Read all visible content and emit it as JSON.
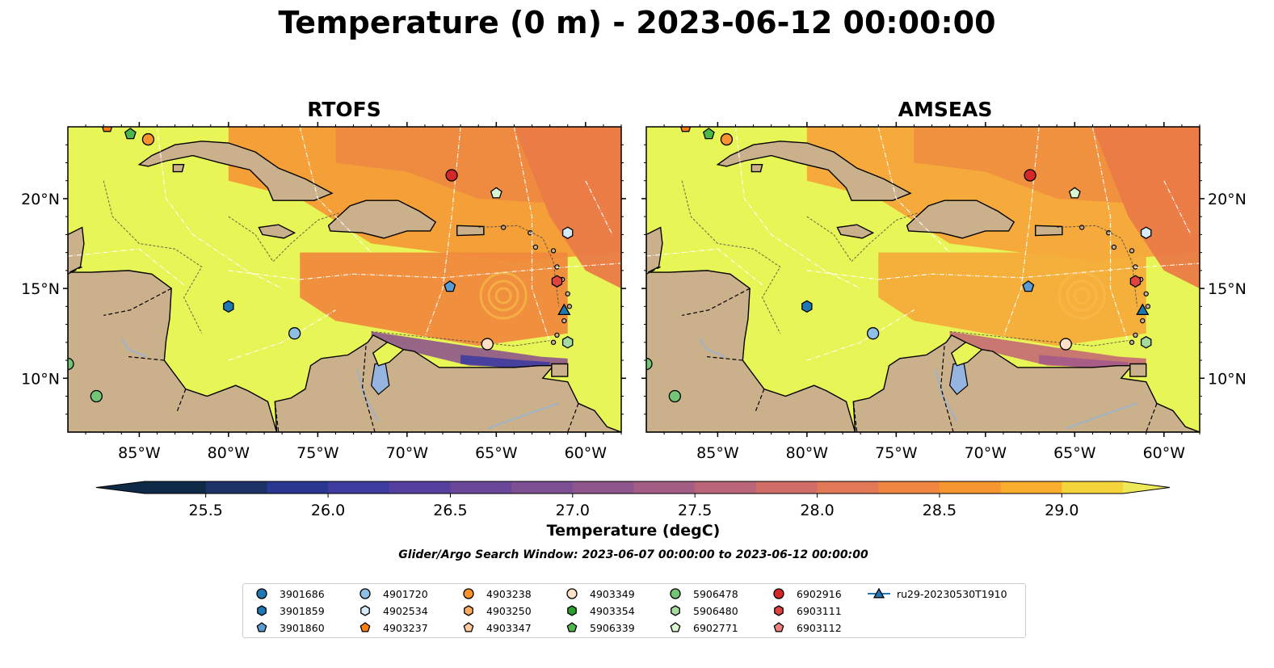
{
  "title": "Temperature (0 m) - 2023-06-12 00:00:00",
  "panels": [
    {
      "title": "RTOFS"
    },
    {
      "title": "AMSEAS"
    }
  ],
  "lon_labels": [
    "85°W",
    "80°W",
    "75°W",
    "70°W",
    "65°W",
    "60°W"
  ],
  "lat_labels": [
    "20°N",
    "15°N",
    "10°N"
  ],
  "map_extent": {
    "lon_min": -89,
    "lon_max": -58,
    "lat_min": 7,
    "lat_max": 24
  },
  "colorbar": {
    "label": "Temperature (degC)",
    "min": 25.25,
    "max": 29.25,
    "step": 0.25,
    "ticks": [
      "25.5",
      "26.0",
      "26.5",
      "27.0",
      "27.5",
      "28.0",
      "28.5",
      "29.0"
    ],
    "colors": [
      "#0e2a46",
      "#1d3266",
      "#2a3790",
      "#3f3ca0",
      "#553f9f",
      "#6a4799",
      "#7c4f93",
      "#8e568c",
      "#a45e86",
      "#bb6678",
      "#d06d66",
      "#e27956",
      "#f0863f",
      "#f6962f",
      "#f8ad2c",
      "#f4d43a"
    ],
    "over_color": "#ede95a"
  },
  "search_window": "Glider/Argo Search Window: 2023-06-07 00:00:00 to 2023-06-12 00:00:00",
  "colors": {
    "land": "#cbb08c",
    "pacific": "#95b4e0",
    "warm_sea": "#e8f556"
  },
  "legend": [
    {
      "label": "3901686",
      "marker": "circle",
      "color": "#1f77b4"
    },
    {
      "label": "3901859",
      "marker": "hexagon",
      "color": "#1f77b4"
    },
    {
      "label": "3901860",
      "marker": "pentagon",
      "color": "#5b9bd5"
    },
    {
      "label": "4901720",
      "marker": "circle",
      "color": "#8ebfe6"
    },
    {
      "label": "4902534",
      "marker": "hexagon",
      "color": "#d6ecfa"
    },
    {
      "label": "4903237",
      "marker": "pentagon",
      "color": "#ff7f0e"
    },
    {
      "label": "4903238",
      "marker": "circle",
      "color": "#f7922d"
    },
    {
      "label": "4903250",
      "marker": "hexagon",
      "color": "#fbae62"
    },
    {
      "label": "4903347",
      "marker": "pentagon",
      "color": "#fdc89a"
    },
    {
      "label": "4903349",
      "marker": "circle",
      "color": "#fde0c5"
    },
    {
      "label": "4903354",
      "marker": "hexagon",
      "color": "#2ca02c"
    },
    {
      "label": "5906339",
      "marker": "pentagon",
      "color": "#4cb84c"
    },
    {
      "label": "5906478",
      "marker": "circle",
      "color": "#74c476"
    },
    {
      "label": "5906480",
      "marker": "hexagon",
      "color": "#a6dba0"
    },
    {
      "label": "6902771",
      "marker": "pentagon",
      "color": "#d9f5cf"
    },
    {
      "label": "6902916",
      "marker": "circle",
      "color": "#d62728"
    },
    {
      "label": "6903111",
      "marker": "hexagon",
      "color": "#e0443f"
    },
    {
      "label": "6903112",
      "marker": "pentagon",
      "color": "#f08080"
    },
    {
      "label": "ru29-20230530T1910",
      "marker": "triangle-line",
      "color": "#1f77b4"
    }
  ],
  "observations": [
    {
      "label": "4903237",
      "lon": -86.8,
      "lat": 24.0
    },
    {
      "label": "5906339",
      "lon": -85.5,
      "lat": 23.6
    },
    {
      "label": "4903238",
      "lon": -84.5,
      "lat": 23.3
    },
    {
      "label": "6902916",
      "lon": -67.5,
      "lat": 21.3
    },
    {
      "label": "6902771",
      "lon": -65.0,
      "lat": 20.3
    },
    {
      "label": "4902534",
      "lon": -61.0,
      "lat": 18.1
    },
    {
      "label": "6903111",
      "lon": -61.6,
      "lat": 15.4
    },
    {
      "label": "3901860",
      "lon": -67.6,
      "lat": 15.1
    },
    {
      "label": "3901859",
      "lon": -80.0,
      "lat": 14.0
    },
    {
      "label": "ru29-20230530T1910",
      "lon": -61.2,
      "lat": 13.8
    },
    {
      "label": "4901720",
      "lon": -76.3,
      "lat": 12.5
    },
    {
      "label": "5906480",
      "lon": -61.0,
      "lat": 12.0
    },
    {
      "label": "4903349",
      "lon": -65.5,
      "lat": 11.9
    },
    {
      "label": "5906478",
      "lon": -89.0,
      "lat": 10.8
    },
    {
      "label": "5906478",
      "lon": -87.4,
      "lat": 9.0
    }
  ]
}
